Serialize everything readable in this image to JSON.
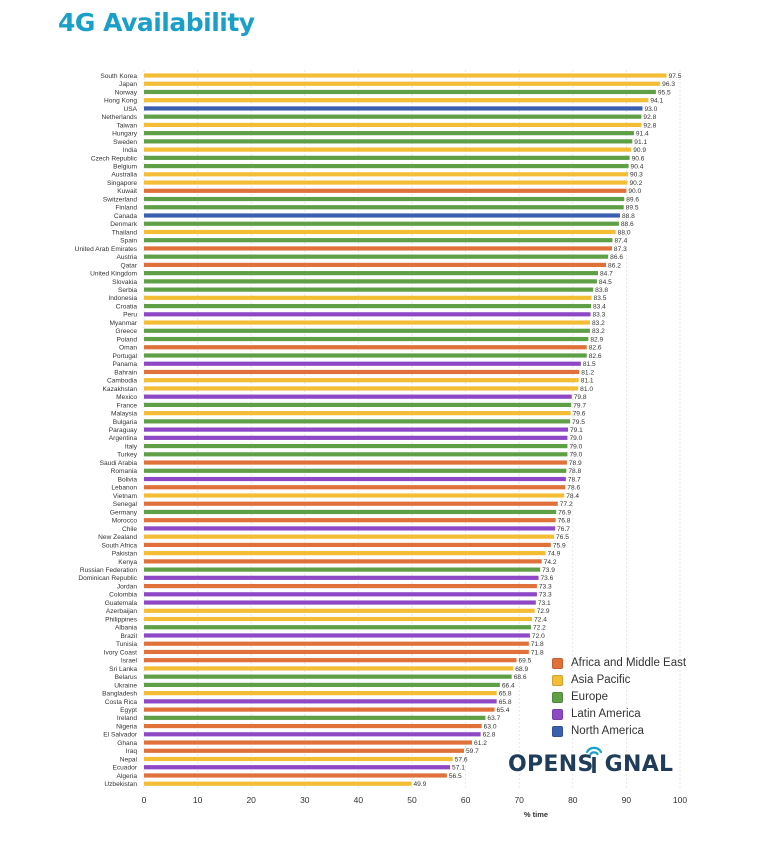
{
  "chart_data": {
    "type": "bar",
    "orientation": "horizontal",
    "title": "4G Availability",
    "xlabel": "% time",
    "xlim": [
      0,
      100
    ],
    "xticks": [
      0,
      10,
      20,
      30,
      40,
      50,
      60,
      70,
      80,
      90,
      100
    ],
    "grid": true,
    "legend_position": "bottom-right",
    "regions": {
      "AF": {
        "name": "Africa and Middle East",
        "color": "#e0713a"
      },
      "AP": {
        "name": "Asia Pacific",
        "color": "#f3bd36"
      },
      "EU": {
        "name": "Europe",
        "color": "#5f9f46"
      },
      "LA": {
        "name": "Latin America",
        "color": "#8e48c6"
      },
      "NA": {
        "name": "North America",
        "color": "#3a5fae"
      }
    },
    "bars": [
      {
        "country": "South Korea",
        "value": 97.5,
        "region": "AP"
      },
      {
        "country": "Japan",
        "value": 96.3,
        "region": "AP"
      },
      {
        "country": "Norway",
        "value": 95.5,
        "region": "EU"
      },
      {
        "country": "Hong Kong",
        "value": 94.1,
        "region": "AP"
      },
      {
        "country": "USA",
        "value": 93.0,
        "region": "NA"
      },
      {
        "country": "Netherlands",
        "value": 92.8,
        "region": "EU"
      },
      {
        "country": "Taiwan",
        "value": 92.8,
        "region": "AP"
      },
      {
        "country": "Hungary",
        "value": 91.4,
        "region": "EU"
      },
      {
        "country": "Sweden",
        "value": 91.1,
        "region": "EU"
      },
      {
        "country": "India",
        "value": 90.9,
        "region": "AP"
      },
      {
        "country": "Czech Republic",
        "value": 90.6,
        "region": "EU"
      },
      {
        "country": "Belgium",
        "value": 90.4,
        "region": "EU"
      },
      {
        "country": "Australia",
        "value": 90.3,
        "region": "AP"
      },
      {
        "country": "Singapore",
        "value": 90.2,
        "region": "AP"
      },
      {
        "country": "Kuwait",
        "value": 90.0,
        "region": "AF"
      },
      {
        "country": "Switzerland",
        "value": 89.6,
        "region": "EU"
      },
      {
        "country": "Finland",
        "value": 89.5,
        "region": "EU"
      },
      {
        "country": "Canada",
        "value": 88.8,
        "region": "NA"
      },
      {
        "country": "Denmark",
        "value": 88.6,
        "region": "EU"
      },
      {
        "country": "Thailand",
        "value": 88.0,
        "region": "AP"
      },
      {
        "country": "Spain",
        "value": 87.4,
        "region": "EU"
      },
      {
        "country": "United Arab Emirates",
        "value": 87.3,
        "region": "AF"
      },
      {
        "country": "Austria",
        "value": 86.6,
        "region": "EU"
      },
      {
        "country": "Qatar",
        "value": 86.2,
        "region": "AF"
      },
      {
        "country": "United Kingdom",
        "value": 84.7,
        "region": "EU"
      },
      {
        "country": "Slovakia",
        "value": 84.5,
        "region": "EU"
      },
      {
        "country": "Serbia",
        "value": 83.8,
        "region": "EU"
      },
      {
        "country": "Indonesia",
        "value": 83.5,
        "region": "AP"
      },
      {
        "country": "Croatia",
        "value": 83.4,
        "region": "EU"
      },
      {
        "country": "Peru",
        "value": 83.3,
        "region": "LA"
      },
      {
        "country": "Myanmar",
        "value": 83.2,
        "region": "AP"
      },
      {
        "country": "Greece",
        "value": 83.2,
        "region": "EU"
      },
      {
        "country": "Poland",
        "value": 82.9,
        "region": "EU"
      },
      {
        "country": "Oman",
        "value": 82.6,
        "region": "AF"
      },
      {
        "country": "Portugal",
        "value": 82.6,
        "region": "EU"
      },
      {
        "country": "Panama",
        "value": 81.5,
        "region": "LA"
      },
      {
        "country": "Bahrain",
        "value": 81.2,
        "region": "AF"
      },
      {
        "country": "Cambodia",
        "value": 81.1,
        "region": "AP"
      },
      {
        "country": "Kazakhstan",
        "value": 81.0,
        "region": "AP"
      },
      {
        "country": "Mexico",
        "value": 79.8,
        "region": "LA"
      },
      {
        "country": "France",
        "value": 79.7,
        "region": "EU"
      },
      {
        "country": "Malaysia",
        "value": 79.6,
        "region": "AP"
      },
      {
        "country": "Bulgaria",
        "value": 79.5,
        "region": "EU"
      },
      {
        "country": "Paraguay",
        "value": 79.1,
        "region": "LA"
      },
      {
        "country": "Argentina",
        "value": 79.0,
        "region": "LA"
      },
      {
        "country": "Italy",
        "value": 79.0,
        "region": "EU"
      },
      {
        "country": "Turkey",
        "value": 79.0,
        "region": "EU"
      },
      {
        "country": "Saudi Arabia",
        "value": 78.9,
        "region": "AF"
      },
      {
        "country": "Romania",
        "value": 78.8,
        "region": "EU"
      },
      {
        "country": "Bolivia",
        "value": 78.7,
        "region": "LA"
      },
      {
        "country": "Lebanon",
        "value": 78.6,
        "region": "AF"
      },
      {
        "country": "Vietnam",
        "value": 78.4,
        "region": "AP"
      },
      {
        "country": "Senegal",
        "value": 77.2,
        "region": "AF"
      },
      {
        "country": "Germany",
        "value": 76.9,
        "region": "EU"
      },
      {
        "country": "Morocco",
        "value": 76.8,
        "region": "AF"
      },
      {
        "country": "Chile",
        "value": 76.7,
        "region": "LA"
      },
      {
        "country": "New Zealand",
        "value": 76.5,
        "region": "AP"
      },
      {
        "country": "South Africa",
        "value": 75.9,
        "region": "AF"
      },
      {
        "country": "Pakistan",
        "value": 74.9,
        "region": "AP"
      },
      {
        "country": "Kenya",
        "value": 74.2,
        "region": "AF"
      },
      {
        "country": "Russian Federation",
        "value": 73.9,
        "region": "EU"
      },
      {
        "country": "Dominican Republic",
        "value": 73.6,
        "region": "LA"
      },
      {
        "country": "Jordan",
        "value": 73.3,
        "region": "AF"
      },
      {
        "country": "Colombia",
        "value": 73.3,
        "region": "LA"
      },
      {
        "country": "Guatemala",
        "value": 73.1,
        "region": "LA"
      },
      {
        "country": "Azerbaijan",
        "value": 72.9,
        "region": "AP"
      },
      {
        "country": "Philippines",
        "value": 72.4,
        "region": "AP"
      },
      {
        "country": "Albania",
        "value": 72.2,
        "region": "EU"
      },
      {
        "country": "Brazil",
        "value": 72.0,
        "region": "LA"
      },
      {
        "country": "Tunisia",
        "value": 71.8,
        "region": "AF"
      },
      {
        "country": "Ivory Coast",
        "value": 71.8,
        "region": "AF"
      },
      {
        "country": "Israel",
        "value": 69.5,
        "region": "AF"
      },
      {
        "country": "Sri Lanka",
        "value": 68.9,
        "region": "AP"
      },
      {
        "country": "Belarus",
        "value": 68.6,
        "region": "EU"
      },
      {
        "country": "Ukraine",
        "value": 66.4,
        "region": "EU"
      },
      {
        "country": "Bangladesh",
        "value": 65.8,
        "region": "AP"
      },
      {
        "country": "Costa Rica",
        "value": 65.8,
        "region": "LA"
      },
      {
        "country": "Egypt",
        "value": 65.4,
        "region": "AF"
      },
      {
        "country": "Ireland",
        "value": 63.7,
        "region": "EU"
      },
      {
        "country": "Nigeria",
        "value": 63.0,
        "region": "AF"
      },
      {
        "country": "El Salvador",
        "value": 62.8,
        "region": "LA"
      },
      {
        "country": "Ghana",
        "value": 61.2,
        "region": "AF"
      },
      {
        "country": "Iraq",
        "value": 59.7,
        "region": "AF"
      },
      {
        "country": "Nepal",
        "value": 57.6,
        "region": "AP"
      },
      {
        "country": "Ecuador",
        "value": 57.1,
        "region": "LA"
      },
      {
        "country": "Algeria",
        "value": 56.5,
        "region": "AF"
      },
      {
        "country": "Uzbekistan",
        "value": 49.9,
        "region": "AP"
      }
    ]
  },
  "legend": {
    "items": [
      {
        "label": "Africa and Middle East",
        "color": "#e0713a"
      },
      {
        "label": "Asia Pacific",
        "color": "#f3bd36"
      },
      {
        "label": "Europe",
        "color": "#5f9f46"
      },
      {
        "label": "Latin America",
        "color": "#8e48c6"
      },
      {
        "label": "North America",
        "color": "#3a5fae"
      }
    ]
  },
  "brand": {
    "name": "OPENSIGNAL",
    "prefix": "OPENS",
    "suffix": "GNAL",
    "icon": "signal-i-icon",
    "color": "#1f3c5a",
    "icon_color": "#1aa0c8"
  }
}
